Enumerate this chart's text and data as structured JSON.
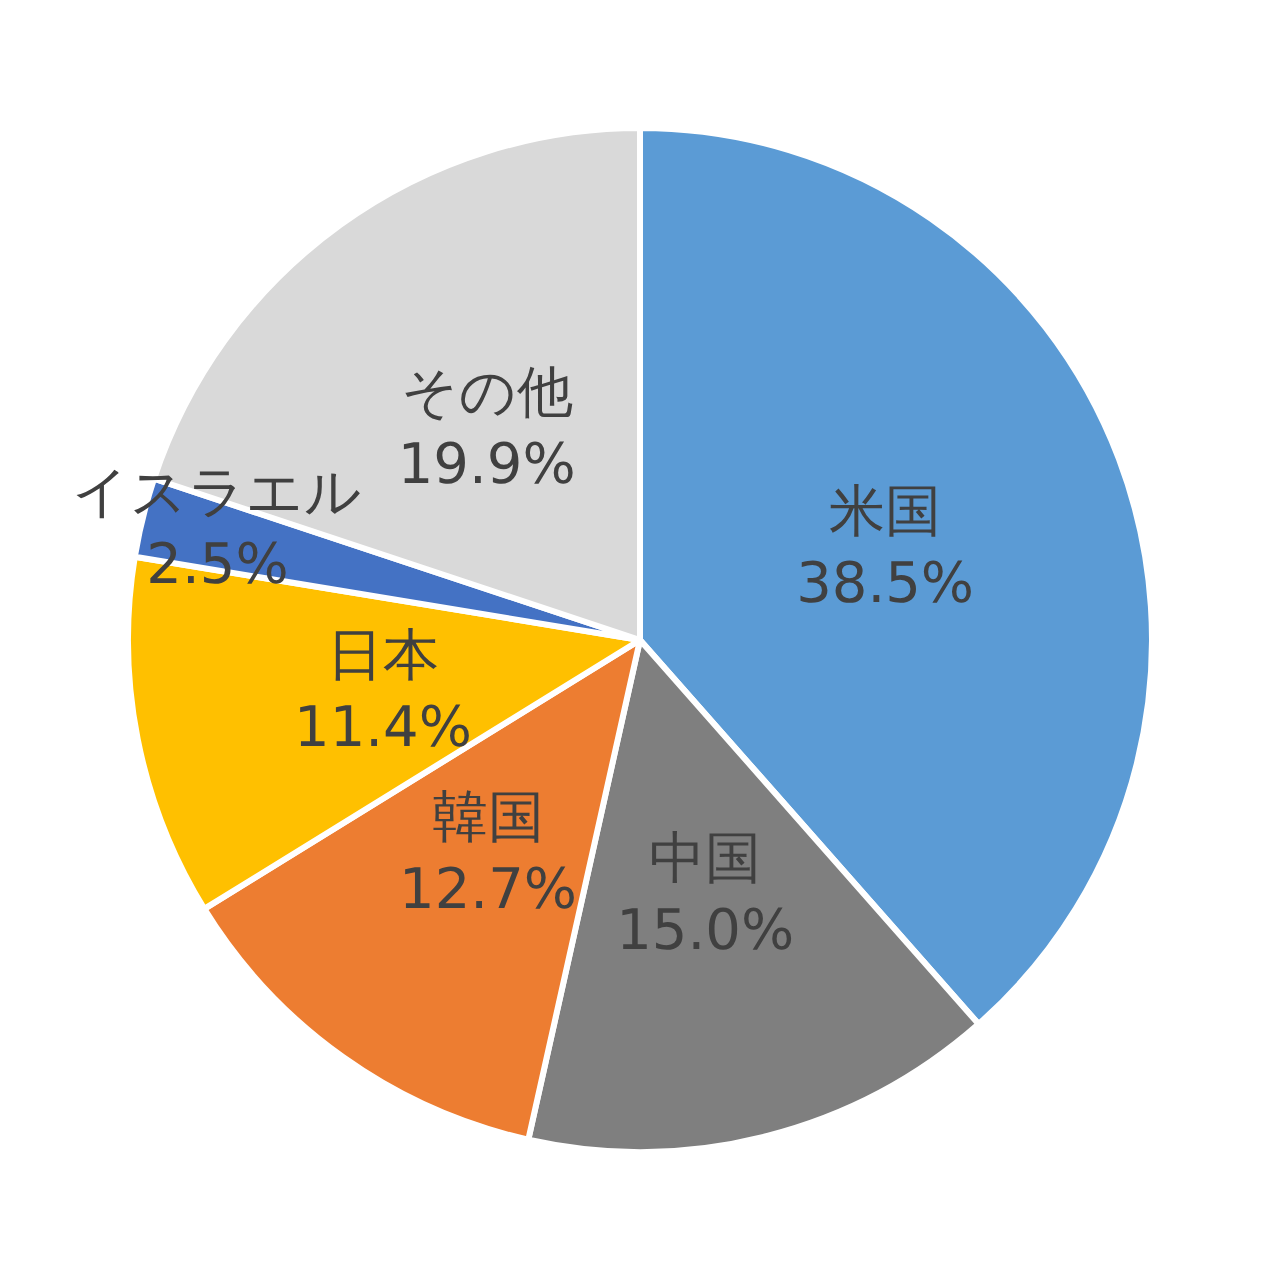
{
  "chart_data": {
    "type": "pie",
    "categories": [
      "米国",
      "中国",
      "韓国",
      "日本",
      "イスラエル",
      "その他"
    ],
    "values": [
      38.5,
      15.0,
      12.7,
      11.4,
      2.5,
      19.9
    ],
    "value_labels": [
      "38.5%",
      "15.0%",
      "12.7%",
      "11.4%",
      "2.5%",
      "19.9%"
    ],
    "colors": [
      "#5b9bd5",
      "#7f7f7f",
      "#ed7d31",
      "#ffc000",
      "#4472c4",
      "#d9d9d9"
    ],
    "legend": false
  }
}
